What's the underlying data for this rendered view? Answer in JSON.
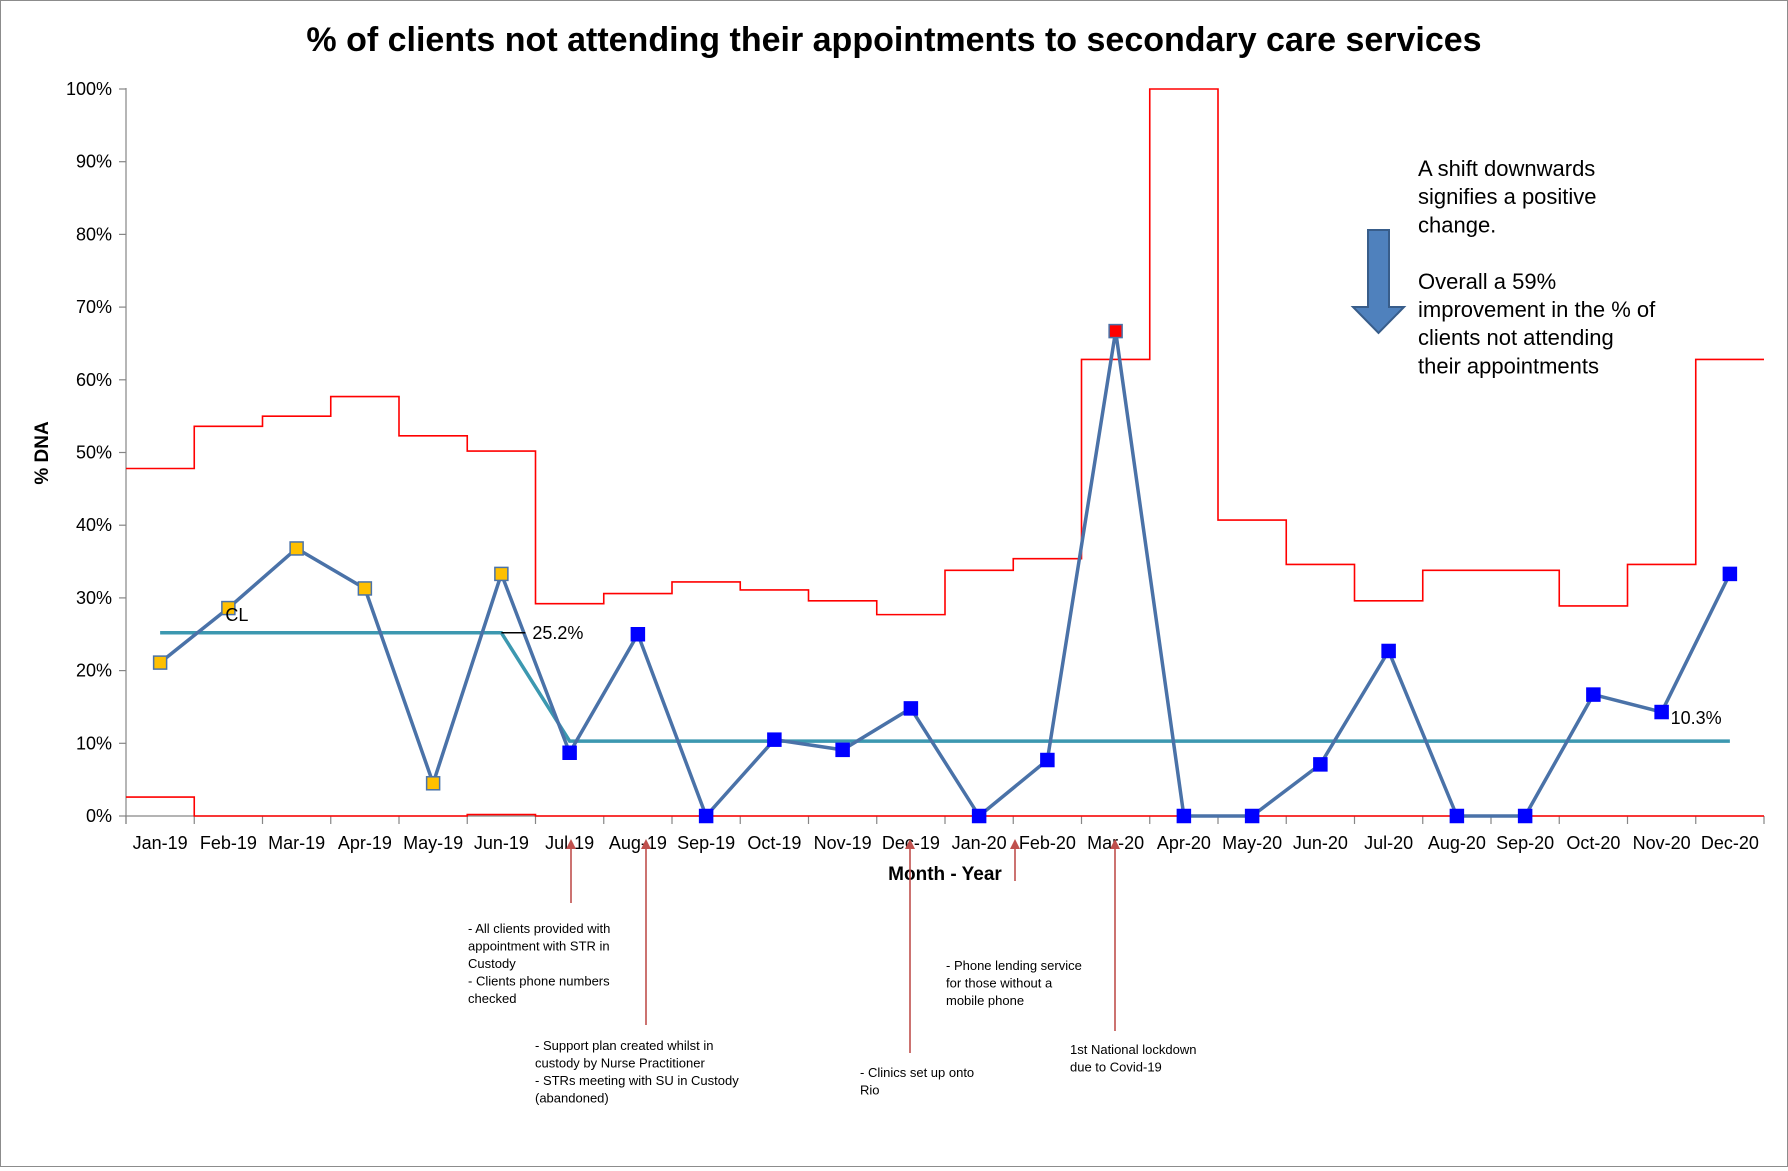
{
  "chart_data": {
    "type": "line",
    "title": "% of clients not attending their appointments to secondary care services",
    "xlabel": "Month - Year",
    "ylabel": "% DNA",
    "ylim": [
      0,
      100
    ],
    "yticks": [
      "0%",
      "10%",
      "20%",
      "30%",
      "40%",
      "50%",
      "60%",
      "70%",
      "80%",
      "90%",
      "100%"
    ],
    "grid": false,
    "categories": [
      "Jan-19",
      "Feb-19",
      "Mar-19",
      "Apr-19",
      "May-19",
      "Jun-19",
      "Jul-19",
      "Aug-19",
      "Sep-19",
      "Oct-19",
      "Nov-19",
      "Dec-19",
      "Jan-20",
      "Feb-20",
      "Mar-20",
      "Apr-20",
      "May-20",
      "Jun-20",
      "Jul-20",
      "Aug-20",
      "Sep-20",
      "Oct-20",
      "Nov-20",
      "Dec-20"
    ],
    "series": [
      {
        "values": [
          21.1,
          28.6,
          36.8,
          31.3,
          4.5,
          33.3,
          8.7,
          25.0,
          0,
          10.5,
          9.1,
          14.8,
          0,
          7.7,
          66.7,
          0,
          0,
          7.1,
          22.7,
          0,
          0,
          16.7,
          14.3,
          33.3
        ],
        "line_color": "#4a72a8",
        "marker_colors": [
          "#ffc000",
          "#ffc000",
          "#ffc000",
          "#ffc000",
          "#ffc000",
          "#ffc000",
          "#0000ff",
          "#0000ff",
          "#0000ff",
          "#0000ff",
          "#0000ff",
          "#0000ff",
          "#0000ff",
          "#0000ff",
          "#ff0000",
          "#0000ff",
          "#0000ff",
          "#0000ff",
          "#0000ff",
          "#0000ff",
          "#0000ff",
          "#0000ff",
          "#0000ff",
          "#0000ff"
        ]
      },
      {
        "label": "CL",
        "values": [
          25.2,
          25.2,
          25.2,
          25.2,
          25.2,
          25.2,
          10.3,
          10.3,
          10.3,
          10.3,
          10.3,
          10.3,
          10.3,
          10.3,
          10.3,
          10.3,
          10.3,
          10.3,
          10.3,
          10.3,
          10.3,
          10.3,
          10.3,
          10.3
        ],
        "line_color": "#3c98b0"
      },
      {
        "values": [
          47.8,
          53.6,
          55.0,
          57.7,
          52.3,
          50.2,
          29.2,
          30.6,
          32.2,
          31.1,
          29.6,
          27.7,
          33.8,
          35.4,
          62.8,
          100,
          40.7,
          34.6,
          29.6,
          33.8,
          33.8,
          28.9,
          34.6,
          62.8
        ],
        "line_color": "#ff0000"
      },
      {
        "values": [
          2.6,
          0,
          0,
          0,
          0,
          0.2,
          0,
          0,
          0,
          0,
          0,
          0,
          0,
          0,
          0,
          0,
          0,
          0,
          0,
          0,
          0,
          0,
          0,
          0
        ],
        "line_color": "#ff0000"
      }
    ],
    "data_labels": [
      "25.2%",
      "10.3%"
    ],
    "note": [
      "A shift downwards",
      "signifies a positive",
      "change.",
      "",
      "Overall a 59%",
      "improvement in the % of",
      "clients not attending",
      "their appointments"
    ],
    "annotations": [
      {
        "month_index": 6,
        "lines": [
          "- All clients provided with",
          "appointment with STR in",
          "Custody",
          "- Clients phone numbers",
          "checked"
        ]
      },
      {
        "month_index": 7,
        "lines": [
          "- Support plan created whilst in",
          "custody by Nurse Practitioner",
          "- STRs meeting with SU in Custody",
          "(abandoned)"
        ]
      },
      {
        "month_index": 11,
        "lines": [
          "- Clinics set up onto",
          "Rio"
        ]
      },
      {
        "month_index": 13,
        "lines": [
          "- Phone lending service",
          "for those without a",
          "mobile phone"
        ]
      },
      {
        "month_index": 14,
        "lines": [
          "1st National lockdown",
          "due to Covid-19"
        ]
      }
    ],
    "colors": {
      "arrow_fill": "#4f81bd",
      "arrow_stroke": "#385d8a",
      "annotation_arrow": "#c0504d",
      "axis": "#868686"
    }
  }
}
